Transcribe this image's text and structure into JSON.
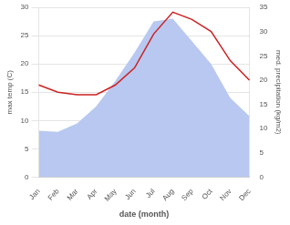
{
  "chart_data": {
    "type": "line",
    "categories": [
      "Jan",
      "Feb",
      "Mar",
      "Apr",
      "May",
      "Jun",
      "Jul",
      "Aug",
      "Sep",
      "Oct",
      "Nov",
      "Dec"
    ],
    "series": [
      {
        "type": "area",
        "color": "#b8c8f0",
        "values": [
          8.2,
          8.0,
          9.5,
          12.5,
          17.0,
          22.0,
          27.5,
          28.0,
          24.0,
          20.0,
          14.0,
          10.8
        ]
      },
      {
        "type": "line",
        "color": "#cc2222",
        "axis": "y2",
        "values": [
          19.0,
          17.5,
          17.0,
          17.0,
          19.0,
          22.5,
          29.5,
          34.0,
          32.5,
          30.0,
          24.0,
          20.0
        ]
      }
    ],
    "xlabel": "date (month)",
    "ylabel": "max temp (C)",
    "y2label": "med. precipitation (kg/m2)",
    "ylim": [
      0,
      30
    ],
    "yticks": [
      0,
      5,
      10,
      15,
      20,
      25,
      30
    ],
    "y2lim": [
      0,
      35
    ],
    "y2ticks": [
      0,
      5,
      10,
      15,
      20,
      25,
      30,
      35
    ],
    "grid": true
  }
}
